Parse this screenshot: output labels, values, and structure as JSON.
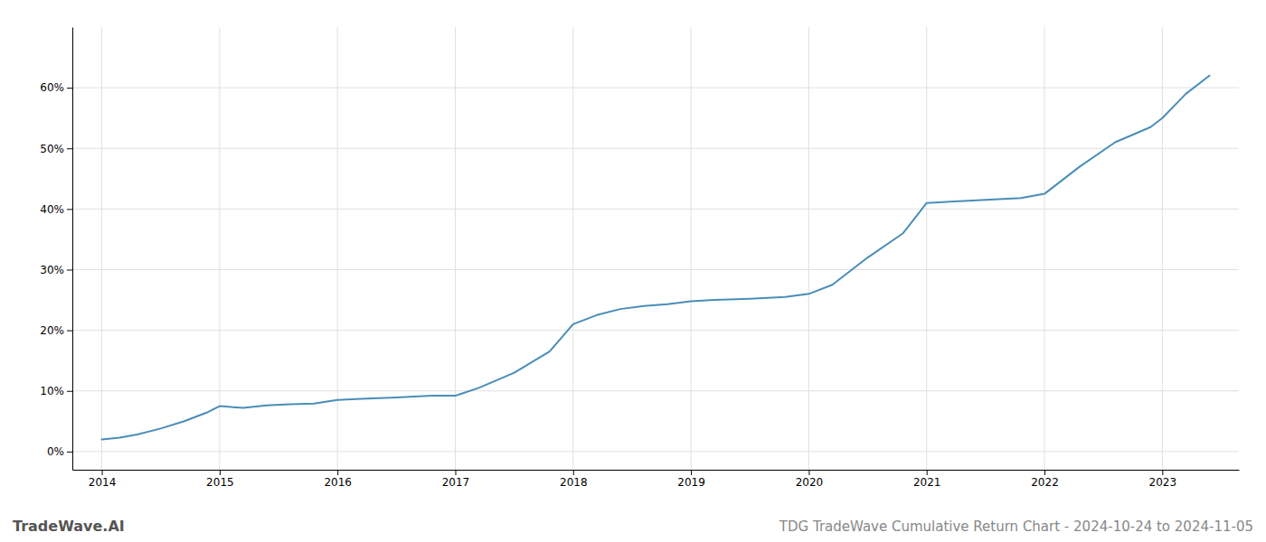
{
  "chart_data": {
    "type": "line",
    "title": "TDG TradeWave Cumulative Return Chart - 2024-10-24 to 2024-11-05",
    "annotations": [
      "TradeWave.AI"
    ],
    "color": "#4a8db8",
    "x": [
      2014.0,
      2014.15,
      2014.3,
      2014.5,
      2014.7,
      2014.9,
      2015.0,
      2015.2,
      2015.4,
      2015.6,
      2015.8,
      2016.0,
      2016.2,
      2016.5,
      2016.8,
      2017.0,
      2017.2,
      2017.5,
      2017.8,
      2018.0,
      2018.2,
      2018.4,
      2018.6,
      2018.8,
      2019.0,
      2019.2,
      2019.5,
      2019.8,
      2020.0,
      2020.2,
      2020.5,
      2020.8,
      2021.0,
      2021.2,
      2021.5,
      2021.8,
      2022.0,
      2022.3,
      2022.6,
      2022.9,
      2023.0,
      2023.2,
      2023.4
    ],
    "values": [
      2.0,
      2.3,
      2.8,
      3.8,
      5.0,
      6.5,
      7.5,
      7.2,
      7.6,
      7.8,
      7.9,
      8.5,
      8.7,
      8.9,
      9.2,
      9.2,
      10.5,
      13.0,
      16.5,
      21.0,
      22.5,
      23.5,
      24.0,
      24.3,
      24.8,
      25.0,
      25.2,
      25.5,
      26.0,
      27.5,
      32.0,
      36.0,
      41.0,
      41.2,
      41.5,
      41.8,
      42.5,
      47.0,
      51.0,
      53.5,
      55.0,
      59.0,
      62.0
    ],
    "xlim": [
      2013.75,
      2023.65
    ],
    "ylim": [
      -3,
      70
    ],
    "xticks": [
      2014,
      2015,
      2016,
      2017,
      2018,
      2019,
      2020,
      2021,
      2022,
      2023
    ],
    "yticks": [
      {
        "value": 0,
        "label": "0%"
      },
      {
        "value": 10,
        "label": "10%"
      },
      {
        "value": 20,
        "label": "20%"
      },
      {
        "value": 30,
        "label": "30%"
      },
      {
        "value": 40,
        "label": "40%"
      },
      {
        "value": 50,
        "label": "50%"
      },
      {
        "value": 60,
        "label": "60%"
      }
    ],
    "grid": true
  }
}
